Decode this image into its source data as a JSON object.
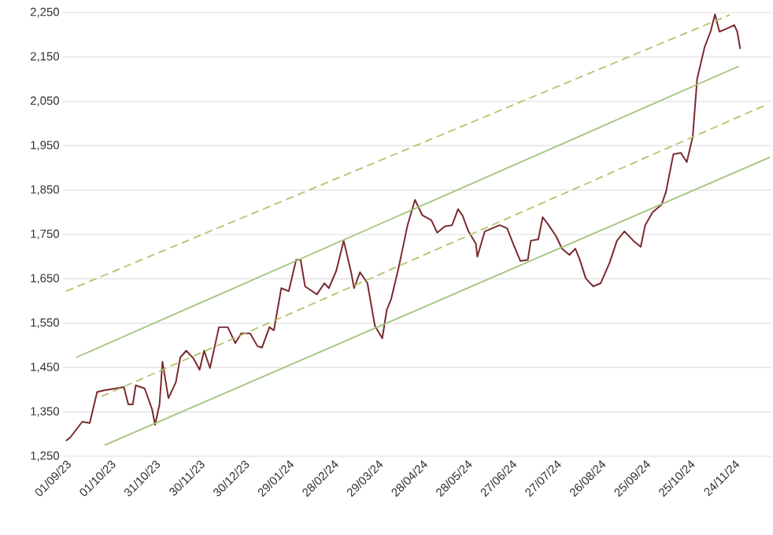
{
  "chart_data": {
    "type": "line",
    "xlim": [
      "2023-08-30",
      "2024-12-19"
    ],
    "ylim": [
      1250,
      2250
    ],
    "xticks": [
      {
        "value": "2023-09-01",
        "label": "01/09/23"
      },
      {
        "value": "2023-10-01",
        "label": "01/10/23"
      },
      {
        "value": "2023-10-31",
        "label": "31/10/23"
      },
      {
        "value": "2023-11-30",
        "label": "30/11/23"
      },
      {
        "value": "2023-12-30",
        "label": "30/12/23"
      },
      {
        "value": "2024-01-29",
        "label": "29/01/24"
      },
      {
        "value": "2024-02-28",
        "label": "28/02/24"
      },
      {
        "value": "2024-03-29",
        "label": "29/03/24"
      },
      {
        "value": "2024-04-28",
        "label": "28/04/24"
      },
      {
        "value": "2024-05-28",
        "label": "28/05/24"
      },
      {
        "value": "2024-06-27",
        "label": "27/06/24"
      },
      {
        "value": "2024-07-27",
        "label": "27/07/24"
      },
      {
        "value": "2024-08-26",
        "label": "26/08/24"
      },
      {
        "value": "2024-09-25",
        "label": "25/09/24"
      },
      {
        "value": "2024-10-25",
        "label": "25/10/24"
      },
      {
        "value": "2024-11-24",
        "label": "24/11/24"
      }
    ],
    "yticks": [
      {
        "value": 1250,
        "label": "1,250"
      },
      {
        "value": 1350,
        "label": "1,350"
      },
      {
        "value": 1450,
        "label": "1,450"
      },
      {
        "value": 1550,
        "label": "1,550"
      },
      {
        "value": 1650,
        "label": "1,650"
      },
      {
        "value": 1750,
        "label": "1,750"
      },
      {
        "value": 1850,
        "label": "1,850"
      },
      {
        "value": 1950,
        "label": "1,950"
      },
      {
        "value": 2050,
        "label": "2,050"
      },
      {
        "value": 2150,
        "label": "2,150"
      },
      {
        "value": 2250,
        "label": "2,250"
      }
    ],
    "grid": "y",
    "legend": false,
    "series": [
      {
        "color": "#7a2a2e",
        "line_style": "solid",
        "x": [
          "2023-09-01",
          "2023-09-04",
          "2023-09-12",
          "2023-09-17",
          "2023-09-20",
          "2023-09-22",
          "2023-09-27",
          "2023-10-03",
          "2023-10-10",
          "2023-10-13",
          "2023-10-16",
          "2023-10-18",
          "2023-10-24",
          "2023-10-29",
          "2023-10-31",
          "2023-11-03",
          "2023-11-05",
          "2023-11-09",
          "2023-11-14",
          "2023-11-17",
          "2023-11-21",
          "2023-11-26",
          "2023-11-30",
          "2023-12-03",
          "2023-12-07",
          "2023-12-13",
          "2023-12-19",
          "2023-12-24",
          "2023-12-28",
          "2024-01-03",
          "2024-01-08",
          "2024-01-11",
          "2024-01-16",
          "2024-01-19",
          "2024-01-24",
          "2024-01-29",
          "2024-02-03",
          "2024-02-06",
          "2024-02-09",
          "2024-02-17",
          "2024-02-22",
          "2024-02-25",
          "2024-03-01",
          "2024-03-06",
          "2024-03-11",
          "2024-03-13",
          "2024-03-17",
          "2024-03-22",
          "2024-03-27",
          "2024-04-01",
          "2024-04-04",
          "2024-04-07",
          "2024-04-12",
          "2024-04-18",
          "2024-04-23",
          "2024-04-28",
          "2024-05-04",
          "2024-05-08",
          "2024-05-13",
          "2024-05-18",
          "2024-05-22",
          "2024-05-25",
          "2024-05-29",
          "2024-06-03",
          "2024-06-04",
          "2024-06-09",
          "2024-06-19",
          "2024-06-24",
          "2024-06-29",
          "2024-07-03",
          "2024-07-08",
          "2024-07-10",
          "2024-07-15",
          "2024-07-18",
          "2024-07-22",
          "2024-07-27",
          "2024-07-31",
          "2024-08-05",
          "2024-08-09",
          "2024-08-12",
          "2024-08-16",
          "2024-08-21",
          "2024-08-26",
          "2024-09-01",
          "2024-09-06",
          "2024-09-11",
          "2024-09-17",
          "2024-09-22",
          "2024-09-25",
          "2024-09-30",
          "2024-10-06",
          "2024-10-09",
          "2024-10-14",
          "2024-10-19",
          "2024-10-23",
          "2024-10-27",
          "2024-10-30",
          "2024-11-04",
          "2024-11-08",
          "2024-11-11",
          "2024-11-14",
          "2024-11-19",
          "2024-11-24",
          "2024-11-26",
          "2024-11-28"
        ],
        "values": [
          1285,
          1293,
          1328,
          1325,
          1367,
          1395,
          1399,
          1402,
          1406,
          1367,
          1367,
          1410,
          1403,
          1356,
          1321,
          1367,
          1463,
          1381,
          1417,
          1473,
          1488,
          1470,
          1445,
          1488,
          1449,
          1541,
          1541,
          1505,
          1527,
          1527,
          1498,
          1495,
          1541,
          1534,
          1629,
          1622,
          1693,
          1693,
          1633,
          1615,
          1640,
          1629,
          1668,
          1736,
          1665,
          1629,
          1665,
          1640,
          1544,
          1516,
          1580,
          1605,
          1675,
          1771,
          1828,
          1793,
          1782,
          1754,
          1768,
          1771,
          1807,
          1793,
          1757,
          1729,
          1700,
          1757,
          1771,
          1764,
          1722,
          1690,
          1693,
          1736,
          1739,
          1789,
          1771,
          1746,
          1718,
          1704,
          1718,
          1693,
          1651,
          1633,
          1640,
          1686,
          1736,
          1757,
          1736,
          1722,
          1771,
          1800,
          1817,
          1846,
          1931,
          1934,
          1913,
          1970,
          2101,
          2172,
          2207,
          2246,
          2207,
          2214,
          2222,
          2207,
          2168
        ]
      },
      {
        "color": "#9fc47a",
        "line_style": "solid",
        "x": [
          "2023-09-08",
          "2024-11-27"
        ],
        "values": [
          1473,
          2129
        ]
      },
      {
        "color": "#9fc47a",
        "line_style": "solid",
        "x": [
          "2023-09-27",
          "2024-12-18"
        ],
        "values": [
          1275,
          1924
        ]
      },
      {
        "color": "#b3c46a",
        "line_style": "dashed",
        "x": [
          "2023-09-01",
          "2024-11-21"
        ],
        "values": [
          1622,
          2245
        ]
      },
      {
        "color": "#b3c46a",
        "line_style": "dashed",
        "x": [
          "2023-09-25",
          "2024-12-16"
        ],
        "values": [
          1385,
          2043
        ]
      }
    ]
  }
}
